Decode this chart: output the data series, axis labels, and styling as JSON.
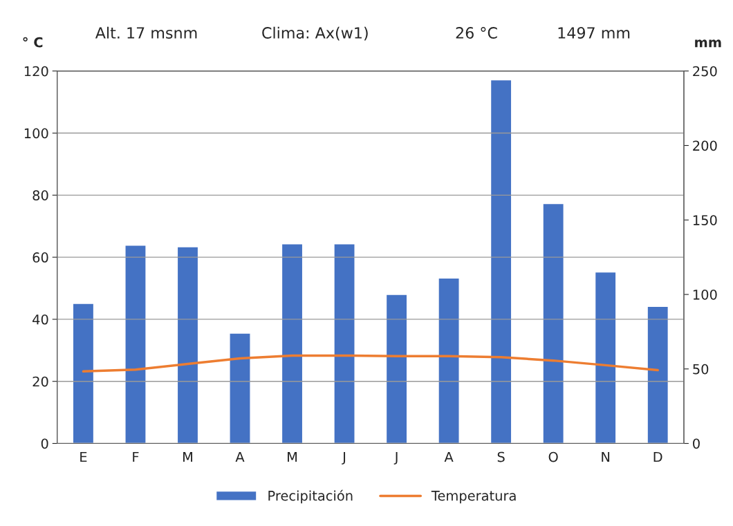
{
  "chart_data": {
    "type": "bar",
    "annotations": [
      "Alt. 17 msnm",
      "Clima: Ax(w1)",
      "26 °C",
      "1497 mm"
    ],
    "ylabel": "° C",
    "y2label": "mm",
    "categories": [
      "E",
      "F",
      "M",
      "A",
      "M",
      "J",
      "J",
      "A",
      "S",
      "O",
      "N",
      "D"
    ],
    "series": [
      {
        "name": "Precipitación",
        "axis": "y2",
        "color": "#4472c4",
        "values": [
          94,
          133,
          132,
          74,
          134,
          134,
          100,
          111,
          244,
          161,
          115,
          92
        ]
      },
      {
        "name": "Temperatura",
        "type": "line",
        "axis": "y",
        "color": "#ed7d31",
        "values": [
          23.2,
          23.8,
          25.6,
          27.4,
          28.3,
          28.3,
          28.1,
          28.1,
          27.8,
          26.7,
          25.2,
          23.6
        ]
      }
    ],
    "ylim": [
      0,
      120
    ],
    "yticks": [
      0,
      20,
      40,
      60,
      80,
      100,
      120
    ],
    "y2lim": [
      0,
      250
    ],
    "y2ticks": [
      0,
      50,
      100,
      150,
      200,
      250
    ],
    "grid": "y",
    "legend": "bottom",
    "marker": "none",
    "line_style": "solid"
  }
}
